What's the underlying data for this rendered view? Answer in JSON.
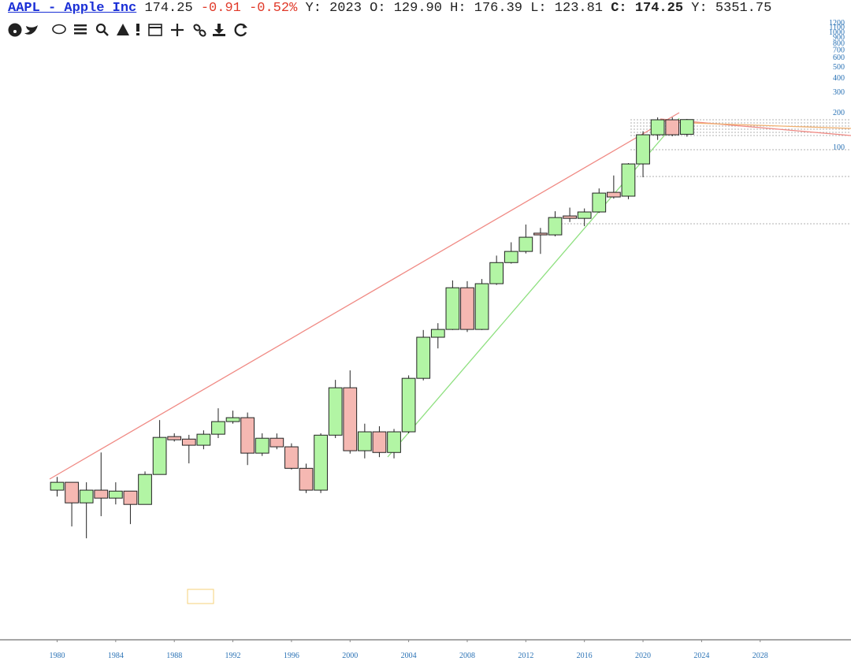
{
  "header": {
    "symbol": "AAPL - Apple Inc",
    "price": "174.25",
    "change": "-0.91",
    "change_pct": "-0.52%",
    "fields": [
      {
        "label": "Y:",
        "value": "2023"
      },
      {
        "label": "O:",
        "value": "129.90"
      },
      {
        "label": "H:",
        "value": "176.39"
      },
      {
        "label": "L:",
        "value": "123.81"
      },
      {
        "label": "C:",
        "value": "174.25"
      },
      {
        "label": "Y:",
        "value": "5351.75"
      }
    ]
  },
  "chart_data": {
    "type": "candlestick",
    "log_y": true,
    "grid": false,
    "up_color": "#b2f5a4",
    "down_color": "#f5b8b2",
    "x": [
      1980,
      1981,
      1982,
      1983,
      1984,
      1985,
      1986,
      1987,
      1988,
      1989,
      1990,
      1991,
      1992,
      1993,
      1994,
      1995,
      1996,
      1997,
      1998,
      1999,
      2000,
      2001,
      2002,
      2003,
      2004,
      2005,
      2006,
      2007,
      2008,
      2009,
      2010,
      2011,
      2012,
      2013,
      2014,
      2015,
      2016,
      2017,
      2018,
      2019,
      2020,
      2021,
      2022,
      2023
    ],
    "open": [
      0.106,
      0.124,
      0.0822,
      0.106,
      0.0904,
      0.104,
      0.0797,
      0.145,
      0.309,
      0.294,
      0.26,
      0.324,
      0.417,
      0.451,
      0.222,
      0.299,
      0.252,
      0.164,
      0.106,
      0.318,
      0.82,
      0.233,
      0.34,
      0.225,
      0.34,
      0.99,
      2.25,
      2.63,
      6.05,
      2.63,
      6.56,
      10.0,
      12.5,
      18.0,
      17.4,
      25.4,
      24.2,
      27.5,
      40.7,
      37.7,
      71.8,
      128.6,
      173.5,
      129.9
    ],
    "high": [
      0.138,
      0.124,
      0.124,
      0.225,
      0.124,
      0.104,
      0.154,
      0.43,
      0.33,
      0.32,
      0.35,
      0.544,
      0.519,
      0.5,
      0.33,
      0.329,
      0.27,
      0.18,
      0.33,
      0.96,
      1.16,
      0.4,
      0.38,
      0.36,
      1.05,
      2.6,
      2.98,
      7.0,
      6.9,
      7.2,
      11.5,
      15.0,
      21.4,
      20.0,
      27.9,
      30,
      29.5,
      44,
      57,
      73,
      138,
      182,
      182,
      176.39
    ],
    "low": [
      0.0933,
      0.0513,
      0.0405,
      0.063,
      0.0797,
      0.0538,
      0.0797,
      0.145,
      0.28,
      0.181,
      0.24,
      0.3,
      0.4,
      0.175,
      0.21,
      0.24,
      0.16,
      0.1,
      0.1,
      0.3,
      0.22,
      0.2,
      0.205,
      0.2,
      0.33,
      0.95,
      1.8,
      2.6,
      2.5,
      2.6,
      6.4,
      9.8,
      12.0,
      11.9,
      16.9,
      22.5,
      20.7,
      27,
      35.9,
      35.5,
      55,
      116,
      125,
      123.81
    ],
    "close": [
      0.124,
      0.0822,
      0.106,
      0.0904,
      0.104,
      0.0797,
      0.145,
      0.304,
      0.29,
      0.26,
      0.324,
      0.417,
      0.451,
      0.222,
      0.299,
      0.252,
      0.164,
      0.106,
      0.318,
      0.82,
      0.233,
      0.34,
      0.225,
      0.34,
      0.99,
      2.25,
      2.63,
      6.05,
      2.63,
      6.56,
      10.0,
      12.5,
      16.6,
      17.4,
      24.6,
      24.2,
      27.5,
      40.1,
      37.1,
      71.8,
      128.6,
      173.5,
      128.6,
      174.25
    ],
    "xlim": [
      1976.1,
      2034.2
    ],
    "xticks": [
      1980,
      1984,
      1988,
      1992,
      1996,
      2000,
      2004,
      2008,
      2012,
      2016,
      2020,
      2024,
      2028
    ],
    "ylim": [
      0.0055,
      1900
    ],
    "yticks": [
      100,
      200,
      300,
      400,
      500,
      600,
      700,
      800,
      900,
      1000,
      1100,
      1200
    ]
  }
}
